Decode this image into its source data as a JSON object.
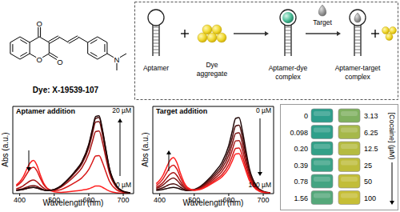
{
  "structure": {
    "caption": "Dye: X-19539-107",
    "atoms": [
      "O",
      "O",
      "O",
      "N"
    ]
  },
  "scheme": {
    "aptamer": [
      "Aptamer"
    ],
    "dye_aggregate": [
      "Dye",
      "aggregate"
    ],
    "complex": [
      "Aptamer-dye",
      "complex"
    ],
    "target": [
      "Target"
    ],
    "target_complex": [
      "Aptamer-target",
      "complex"
    ]
  },
  "chart_data": [
    {
      "type": "line",
      "title": "Aptamer addition",
      "x_label": "Wavelength (nm)",
      "y_label": "Abs (a.u.)",
      "annotations": [
        "20 µM",
        "0 µM"
      ],
      "x": [
        390,
        400,
        410,
        420,
        430,
        440,
        450,
        460,
        470,
        480,
        500,
        520,
        540,
        560,
        580,
        600,
        610,
        620,
        630,
        640,
        650,
        660,
        680,
        700,
        720
      ],
      "xlim": [
        380,
        730
      ],
      "xticks": [
        400,
        500,
        600,
        700
      ],
      "ylim": [
        0,
        0.45
      ],
      "tick_labels": "x",
      "series": [
        {
          "color": "#ff2020",
          "values": [
            0.044,
            0.061,
            0.086,
            0.124,
            0.158,
            0.171,
            0.146,
            0.095,
            0.052,
            0.027,
            0.009,
            0.006,
            0.009,
            0.013,
            0.018,
            0.025,
            0.032,
            0.039,
            0.039,
            0.032,
            0.022,
            0.013,
            0.004,
            0.001,
            0
          ]
        },
        {
          "color": "#d81818",
          "values": [
            0.039,
            0.052,
            0.071,
            0.1,
            0.126,
            0.136,
            0.117,
            0.078,
            0.045,
            0.026,
            0.015,
            0.021,
            0.037,
            0.057,
            0.081,
            0.124,
            0.16,
            0.194,
            0.196,
            0.16,
            0.11,
            0.064,
            0.02,
            0.006,
            0.002
          ]
        },
        {
          "color": "#a81414",
          "values": [
            0.025,
            0.031,
            0.04,
            0.053,
            0.065,
            0.07,
            0.061,
            0.043,
            0.028,
            0.019,
            0.019,
            0.034,
            0.06,
            0.093,
            0.133,
            0.205,
            0.264,
            0.32,
            0.323,
            0.264,
            0.182,
            0.106,
            0.033,
            0.01,
            0.003
          ]
        },
        {
          "color": "#781010",
          "values": [
            0.019,
            0.022,
            0.026,
            0.033,
            0.039,
            0.041,
            0.037,
            0.028,
            0.02,
            0.016,
            0.02,
            0.038,
            0.069,
            0.107,
            0.152,
            0.236,
            0.304,
            0.369,
            0.372,
            0.304,
            0.209,
            0.122,
            0.038,
            0.011,
            0.004
          ]
        },
        {
          "color": "#4a0c0c",
          "values": [
            0.017,
            0.019,
            0.022,
            0.026,
            0.03,
            0.032,
            0.029,
            0.023,
            0.018,
            0.015,
            0.021,
            0.04,
            0.072,
            0.112,
            0.16,
            0.248,
            0.32,
            0.388,
            0.392,
            0.32,
            0.22,
            0.128,
            0.04,
            0.012,
            0.004
          ]
        },
        {
          "color": "#1e0606",
          "values": [
            0.017,
            0.019,
            0.022,
            0.027,
            0.031,
            0.032,
            0.029,
            0.023,
            0.018,
            0.015,
            0.021,
            0.041,
            0.074,
            0.115,
            0.164,
            0.254,
            0.328,
            0.398,
            0.402,
            0.328,
            0.226,
            0.131,
            0.041,
            0.012,
            0.004
          ]
        }
      ]
    },
    {
      "type": "line",
      "title": "Target addition",
      "x_label": "Wavelength (nm)",
      "y_label": "Abs (a.u.)",
      "annotations": [
        "0 µM",
        "100 µM"
      ],
      "x": [
        390,
        400,
        410,
        420,
        430,
        440,
        450,
        460,
        470,
        480,
        500,
        520,
        540,
        560,
        580,
        600,
        610,
        620,
        630,
        640,
        650,
        660,
        680,
        700,
        720
      ],
      "xlim": [
        380,
        730
      ],
      "xticks": [
        400,
        500,
        600,
        700
      ],
      "ylim": [
        0,
        0.45
      ],
      "tick_labels": "x",
      "series": [
        {
          "color": "#1e0606",
          "values": [
            0.017,
            0.019,
            0.022,
            0.026,
            0.03,
            0.032,
            0.029,
            0.023,
            0.018,
            0.015,
            0.021,
            0.04,
            0.072,
            0.112,
            0.16,
            0.248,
            0.32,
            0.388,
            0.392,
            0.32,
            0.22,
            0.128,
            0.04,
            0.012,
            0.004
          ]
        },
        {
          "color": "#4a0c0c",
          "values": [
            0.021,
            0.025,
            0.031,
            0.04,
            0.048,
            0.051,
            0.045,
            0.033,
            0.023,
            0.017,
            0.02,
            0.036,
            0.065,
            0.101,
            0.144,
            0.223,
            0.288,
            0.349,
            0.353,
            0.288,
            0.198,
            0.115,
            0.036,
            0.011,
            0.004
          ]
        },
        {
          "color": "#781010",
          "values": [
            0.027,
            0.034,
            0.045,
            0.06,
            0.074,
            0.08,
            0.069,
            0.048,
            0.031,
            0.02,
            0.019,
            0.033,
            0.058,
            0.09,
            0.129,
            0.198,
            0.256,
            0.31,
            0.314,
            0.256,
            0.176,
            0.102,
            0.032,
            0.01,
            0.003
          ]
        },
        {
          "color": "#a81414",
          "values": [
            0.033,
            0.043,
            0.058,
            0.08,
            0.1,
            0.108,
            0.093,
            0.063,
            0.038,
            0.023,
            0.018,
            0.029,
            0.051,
            0.079,
            0.113,
            0.174,
            0.224,
            0.272,
            0.274,
            0.224,
            0.154,
            0.09,
            0.028,
            0.008,
            0.003
          ]
        },
        {
          "color": "#d81818",
          "values": [
            0.042,
            0.056,
            0.077,
            0.108,
            0.136,
            0.147,
            0.126,
            0.084,
            0.049,
            0.028,
            0.018,
            0.025,
            0.045,
            0.069,
            0.097,
            0.149,
            0.192,
            0.233,
            0.235,
            0.192,
            0.132,
            0.077,
            0.024,
            0.007,
            0.002
          ]
        },
        {
          "color": "#ff2020",
          "values": [
            0.051,
            0.069,
            0.096,
            0.136,
            0.172,
            0.186,
            0.159,
            0.105,
            0.06,
            0.033,
            0.018,
            0.023,
            0.04,
            0.061,
            0.086,
            0.13,
            0.168,
            0.204,
            0.206,
            0.168,
            0.116,
            0.067,
            0.021,
            0.006,
            0.002
          ]
        }
      ]
    }
  ],
  "color_grid": {
    "title": "[Cocaine] (µM)",
    "columns": [
      [
        {
          "value": 0,
          "color": "#2e9e8c"
        },
        {
          "value": 0.098,
          "color": "#2f9f8a"
        },
        {
          "value": 0.2,
          "label": "0.20",
          "color": "#33a088"
        },
        {
          "value": 0.39,
          "color": "#3aa286"
        },
        {
          "value": 0.78,
          "color": "#44a482"
        },
        {
          "value": 1.56,
          "color": "#55a87a"
        }
      ],
      [
        {
          "value": 3.13,
          "color": "#7fb060"
        },
        {
          "value": 6.25,
          "color": "#a6b84a"
        },
        {
          "value": 12.5,
          "color": "#b5bb40"
        },
        {
          "value": 25,
          "color": "#bdbc3a"
        },
        {
          "value": 50,
          "color": "#c2bd38"
        },
        {
          "value": 100,
          "color": "#c6be36"
        }
      ]
    ]
  }
}
